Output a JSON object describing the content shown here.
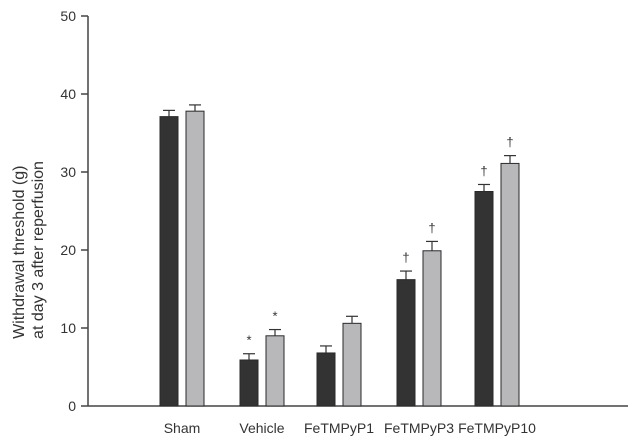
{
  "chart_data": {
    "type": "bar",
    "categories": [
      "Sham",
      "Vehicle",
      "FeTMPyP1",
      "FeTMPyP3",
      "FeTMPyP10"
    ],
    "series": [
      {
        "color": "#333333",
        "values": [
          37.1,
          5.9,
          6.8,
          16.2,
          27.5
        ],
        "errors": [
          0.8,
          0.8,
          0.9,
          1.1,
          0.9
        ],
        "annotations": [
          "",
          "*",
          "",
          "†",
          "†"
        ]
      },
      {
        "color": "#b8b8ba",
        "values": [
          37.8,
          9.0,
          10.6,
          19.9,
          31.1
        ],
        "errors": [
          0.8,
          0.8,
          0.9,
          1.2,
          1.0
        ],
        "annotations": [
          "",
          "*",
          "",
          "†",
          "†"
        ]
      }
    ],
    "ylabel_line1": "Withdrawal threshold (g)",
    "ylabel_line2": "at day 3 after reperfusion",
    "ylim": [
      0,
      50
    ],
    "yticks": [
      0,
      10,
      20,
      30,
      40,
      50
    ],
    "grid": false,
    "legend": "none"
  }
}
